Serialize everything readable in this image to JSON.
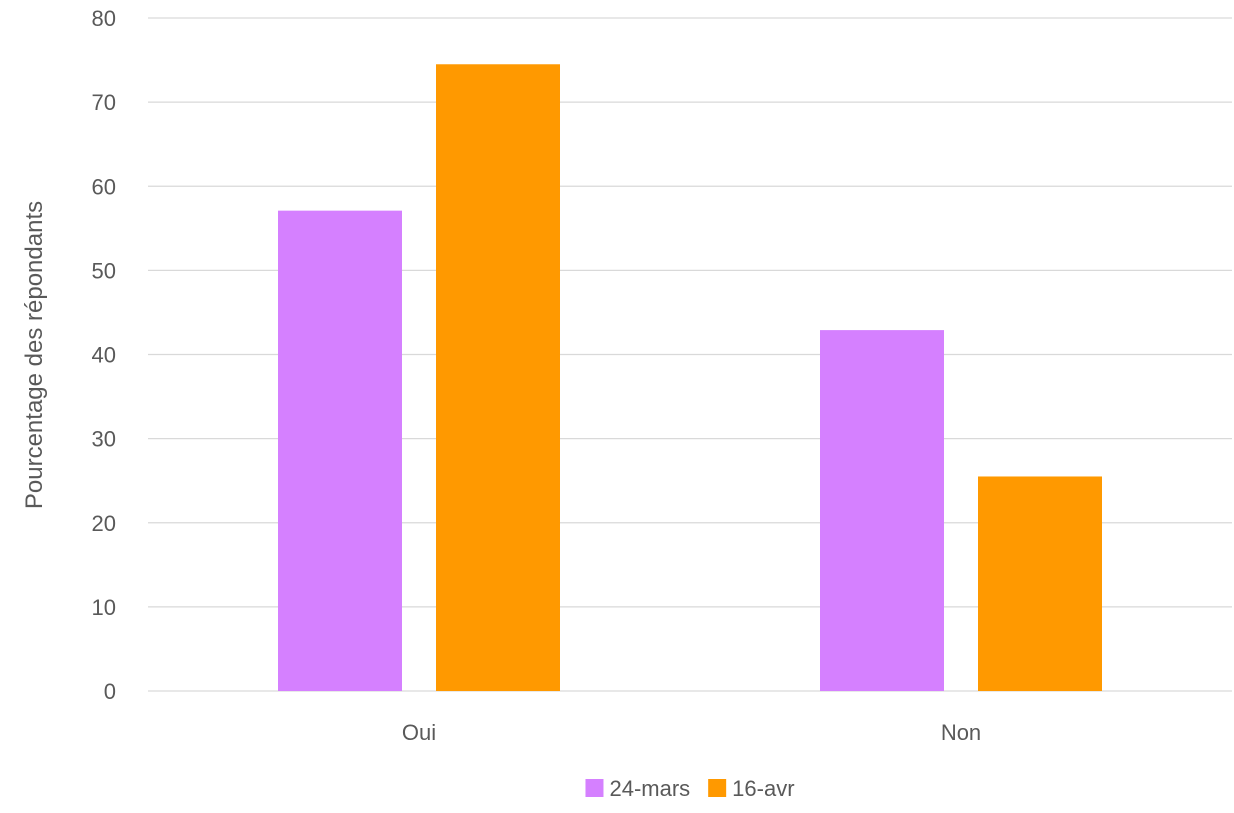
{
  "chart_data": {
    "type": "bar",
    "title": "",
    "xlabel": "",
    "ylabel": "Pourcentage des répondants",
    "categories": [
      "Oui",
      "Non"
    ],
    "series": [
      {
        "name": "24-mars",
        "color": "#D580FF",
        "values": [
          57.1,
          42.9
        ]
      },
      {
        "name": "16-avr",
        "color": "#FF9900",
        "values": [
          74.5,
          25.5
        ]
      }
    ],
    "ylim": [
      0,
      80
    ],
    "yticks": [
      0,
      10,
      20,
      30,
      40,
      50,
      60,
      70,
      80
    ],
    "grid": true,
    "gridColor": "#D9D9D9",
    "legend_position": "bottom"
  }
}
